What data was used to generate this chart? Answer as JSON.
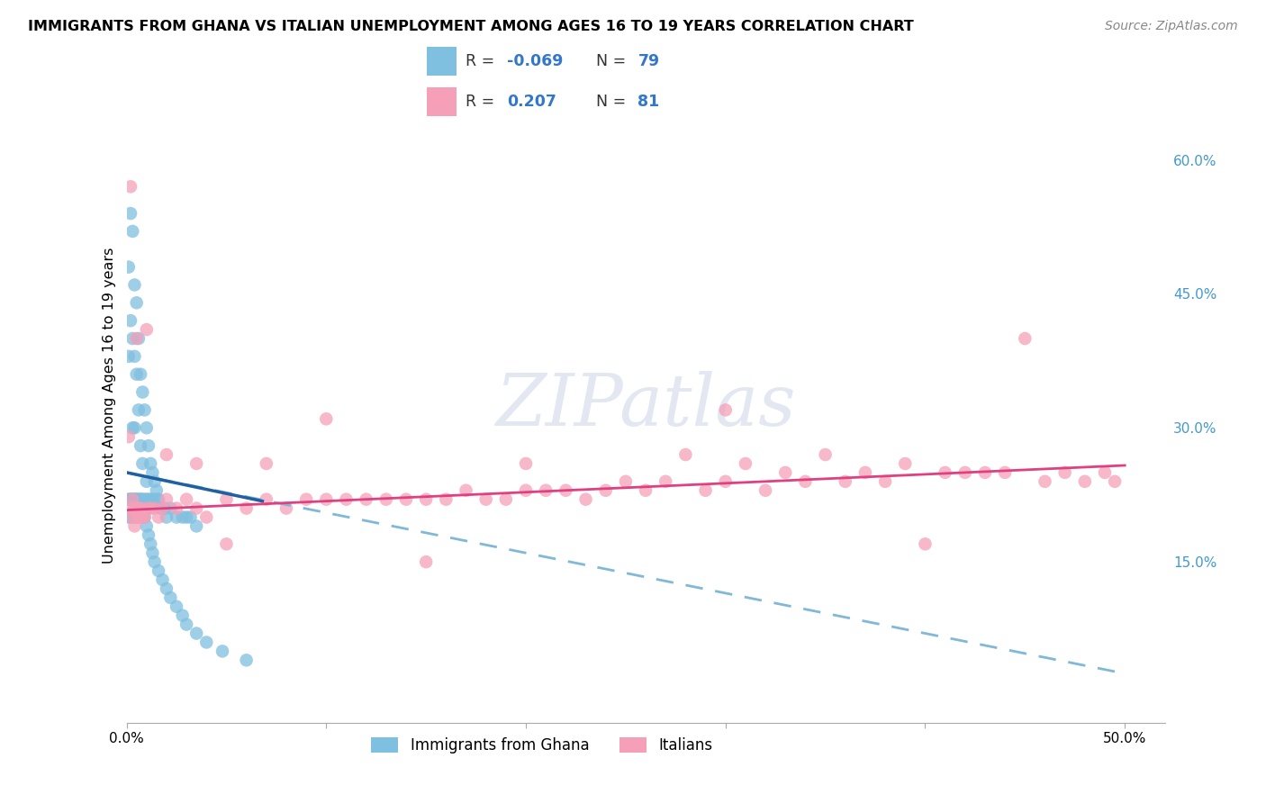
{
  "title": "IMMIGRANTS FROM GHANA VS ITALIAN UNEMPLOYMENT AMONG AGES 16 TO 19 YEARS CORRELATION CHART",
  "source": "Source: ZipAtlas.com",
  "ylabel": "Unemployment Among Ages 16 to 19 years",
  "xlim": [
    0.0,
    0.52
  ],
  "ylim": [
    -0.03,
    0.68
  ],
  "xtick_vals": [
    0.0,
    0.1,
    0.2,
    0.3,
    0.4,
    0.5
  ],
  "xticklabels": [
    "0.0%",
    "",
    "",
    "",
    "",
    "50.0%"
  ],
  "ytick_right_vals": [
    0.15,
    0.3,
    0.45,
    0.6
  ],
  "ytick_right_labels": [
    "15.0%",
    "30.0%",
    "45.0%",
    "60.0%"
  ],
  "blue_color": "#7fbfdf",
  "pink_color": "#f5a0b8",
  "trend_blue_solid_color": "#2060a0",
  "trend_pink_solid_color": "#e04080",
  "trend_blue_dash_color": "#80b8d8",
  "watermark": "ZIPatlas",
  "legend_label1": "Immigrants from Ghana",
  "legend_label2": "Italians",
  "background_color": "#ffffff",
  "grid_color": "#cccccc",
  "blue_x": [
    0.001,
    0.001,
    0.002,
    0.002,
    0.002,
    0.003,
    0.003,
    0.003,
    0.004,
    0.004,
    0.004,
    0.004,
    0.005,
    0.005,
    0.005,
    0.006,
    0.006,
    0.006,
    0.007,
    0.007,
    0.007,
    0.008,
    0.008,
    0.008,
    0.009,
    0.009,
    0.01,
    0.01,
    0.01,
    0.011,
    0.011,
    0.011,
    0.012,
    0.012,
    0.013,
    0.013,
    0.014,
    0.015,
    0.015,
    0.016,
    0.017,
    0.018,
    0.019,
    0.02,
    0.022,
    0.025,
    0.028,
    0.03,
    0.032,
    0.035,
    0.001,
    0.001,
    0.002,
    0.002,
    0.003,
    0.003,
    0.004,
    0.005,
    0.005,
    0.006,
    0.007,
    0.008,
    0.009,
    0.01,
    0.011,
    0.012,
    0.013,
    0.014,
    0.016,
    0.018,
    0.02,
    0.022,
    0.025,
    0.028,
    0.03,
    0.035,
    0.04,
    0.048,
    0.06
  ],
  "blue_y": [
    0.48,
    0.38,
    0.54,
    0.42,
    0.22,
    0.52,
    0.4,
    0.3,
    0.46,
    0.38,
    0.3,
    0.22,
    0.44,
    0.36,
    0.22,
    0.4,
    0.32,
    0.22,
    0.36,
    0.28,
    0.22,
    0.34,
    0.26,
    0.22,
    0.32,
    0.22,
    0.3,
    0.24,
    0.22,
    0.28,
    0.22,
    0.21,
    0.26,
    0.22,
    0.25,
    0.22,
    0.24,
    0.23,
    0.22,
    0.22,
    0.21,
    0.21,
    0.21,
    0.2,
    0.21,
    0.2,
    0.2,
    0.2,
    0.2,
    0.19,
    0.22,
    0.2,
    0.22,
    0.2,
    0.22,
    0.2,
    0.22,
    0.22,
    0.2,
    0.21,
    0.22,
    0.21,
    0.2,
    0.19,
    0.18,
    0.17,
    0.16,
    0.15,
    0.14,
    0.13,
    0.12,
    0.11,
    0.1,
    0.09,
    0.08,
    0.07,
    0.06,
    0.05,
    0.04
  ],
  "pink_x": [
    0.001,
    0.002,
    0.003,
    0.003,
    0.004,
    0.004,
    0.005,
    0.005,
    0.006,
    0.006,
    0.007,
    0.007,
    0.008,
    0.009,
    0.01,
    0.012,
    0.014,
    0.016,
    0.018,
    0.02,
    0.025,
    0.03,
    0.035,
    0.04,
    0.05,
    0.06,
    0.07,
    0.08,
    0.09,
    0.1,
    0.11,
    0.12,
    0.13,
    0.14,
    0.15,
    0.16,
    0.17,
    0.18,
    0.19,
    0.2,
    0.21,
    0.22,
    0.23,
    0.24,
    0.25,
    0.26,
    0.27,
    0.28,
    0.29,
    0.3,
    0.31,
    0.32,
    0.33,
    0.34,
    0.35,
    0.36,
    0.37,
    0.38,
    0.39,
    0.4,
    0.41,
    0.42,
    0.43,
    0.44,
    0.45,
    0.46,
    0.47,
    0.48,
    0.49,
    0.495,
    0.002,
    0.005,
    0.01,
    0.02,
    0.035,
    0.05,
    0.07,
    0.1,
    0.15,
    0.2,
    0.3
  ],
  "pink_y": [
    0.29,
    0.21,
    0.2,
    0.22,
    0.19,
    0.21,
    0.2,
    0.21,
    0.2,
    0.21,
    0.2,
    0.21,
    0.2,
    0.2,
    0.21,
    0.21,
    0.21,
    0.2,
    0.21,
    0.22,
    0.21,
    0.22,
    0.21,
    0.2,
    0.22,
    0.21,
    0.22,
    0.21,
    0.22,
    0.22,
    0.22,
    0.22,
    0.22,
    0.22,
    0.22,
    0.22,
    0.23,
    0.22,
    0.22,
    0.23,
    0.23,
    0.23,
    0.22,
    0.23,
    0.24,
    0.23,
    0.24,
    0.27,
    0.23,
    0.24,
    0.26,
    0.23,
    0.25,
    0.24,
    0.27,
    0.24,
    0.25,
    0.24,
    0.26,
    0.17,
    0.25,
    0.25,
    0.25,
    0.25,
    0.4,
    0.24,
    0.25,
    0.24,
    0.25,
    0.24,
    0.57,
    0.4,
    0.41,
    0.27,
    0.26,
    0.17,
    0.26,
    0.31,
    0.15,
    0.26,
    0.32
  ],
  "trend_blue_x0": 0.0,
  "trend_blue_x1": 0.068,
  "trend_blue_y0": 0.25,
  "trend_blue_y1": 0.218,
  "trend_pink_x0": 0.0,
  "trend_pink_x1": 0.5,
  "trend_pink_y0": 0.208,
  "trend_pink_y1": 0.258,
  "trend_dash_x0": 0.0,
  "trend_dash_x1": 0.5,
  "trend_dash_y0": 0.25,
  "trend_dash_y1": 0.025
}
